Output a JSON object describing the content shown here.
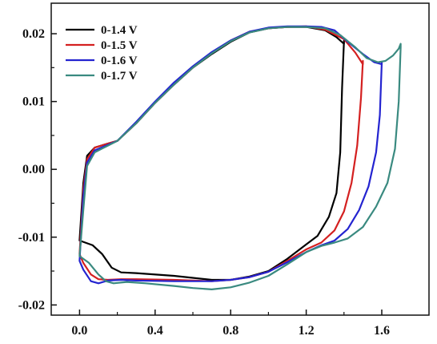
{
  "chart_data": {
    "type": "line",
    "title": "",
    "xlabel": "",
    "ylabel": "",
    "xlim": [
      -0.15,
      1.85
    ],
    "ylim": [
      -0.0215,
      0.0245
    ],
    "x_ticks": [
      0.0,
      0.4,
      0.8,
      1.2,
      1.6
    ],
    "x_tick_labels": [
      "0.0",
      "0.4",
      "0.8",
      "1.2",
      "1.6"
    ],
    "y_ticks": [
      0.02,
      0.01,
      0.0,
      -0.01,
      -0.02
    ],
    "y_tick_labels": [
      "0.02",
      "0.01",
      "0.00",
      "-0.01",
      "-0.02"
    ],
    "grid": false,
    "legend_position": "top-left",
    "series": [
      {
        "name": "0-1.4 V",
        "color": "#000000",
        "points": [
          [
            0.0,
            -0.0105
          ],
          [
            0.02,
            -0.002
          ],
          [
            0.04,
            0.002
          ],
          [
            0.08,
            0.0032
          ],
          [
            0.15,
            0.0038
          ],
          [
            0.2,
            0.0042
          ],
          [
            0.3,
            0.0068
          ],
          [
            0.4,
            0.0098
          ],
          [
            0.5,
            0.0125
          ],
          [
            0.6,
            0.015
          ],
          [
            0.7,
            0.017
          ],
          [
            0.8,
            0.0188
          ],
          [
            0.9,
            0.0202
          ],
          [
            1.0,
            0.0208
          ],
          [
            1.1,
            0.021
          ],
          [
            1.2,
            0.021
          ],
          [
            1.3,
            0.0205
          ],
          [
            1.36,
            0.0195
          ],
          [
            1.4,
            0.0185
          ],
          [
            1.4,
            0.019
          ],
          [
            1.39,
            0.012
          ],
          [
            1.38,
            0.0025
          ],
          [
            1.36,
            -0.0035
          ],
          [
            1.32,
            -0.007
          ],
          [
            1.26,
            -0.0098
          ],
          [
            1.18,
            -0.0115
          ],
          [
            1.1,
            -0.0132
          ],
          [
            1.0,
            -0.015
          ],
          [
            0.9,
            -0.0158
          ],
          [
            0.8,
            -0.0163
          ],
          [
            0.7,
            -0.0163
          ],
          [
            0.5,
            -0.0157
          ],
          [
            0.3,
            -0.0153
          ],
          [
            0.22,
            -0.0152
          ],
          [
            0.17,
            -0.0145
          ],
          [
            0.12,
            -0.0125
          ],
          [
            0.07,
            -0.0112
          ],
          [
            0.0,
            -0.0105
          ]
        ]
      },
      {
        "name": "0-1.5 V",
        "color": "#d42020",
        "points": [
          [
            0.0,
            -0.0125
          ],
          [
            0.02,
            -0.003
          ],
          [
            0.04,
            0.0015
          ],
          [
            0.08,
            0.0032
          ],
          [
            0.15,
            0.0038
          ],
          [
            0.2,
            0.0042
          ],
          [
            0.3,
            0.0068
          ],
          [
            0.4,
            0.0098
          ],
          [
            0.5,
            0.0125
          ],
          [
            0.6,
            0.015
          ],
          [
            0.7,
            0.0172
          ],
          [
            0.8,
            0.019
          ],
          [
            0.9,
            0.0203
          ],
          [
            1.0,
            0.0208
          ],
          [
            1.1,
            0.021
          ],
          [
            1.2,
            0.0211
          ],
          [
            1.3,
            0.0206
          ],
          [
            1.4,
            0.0192
          ],
          [
            1.46,
            0.0172
          ],
          [
            1.5,
            0.0155
          ],
          [
            1.5,
            0.016
          ],
          [
            1.49,
            0.0105
          ],
          [
            1.47,
            0.0035
          ],
          [
            1.44,
            -0.002
          ],
          [
            1.4,
            -0.0062
          ],
          [
            1.35,
            -0.009
          ],
          [
            1.28,
            -0.0108
          ],
          [
            1.2,
            -0.0118
          ],
          [
            1.1,
            -0.0135
          ],
          [
            1.0,
            -0.0151
          ],
          [
            0.9,
            -0.0159
          ],
          [
            0.8,
            -0.0163
          ],
          [
            0.7,
            -0.0165
          ],
          [
            0.5,
            -0.0163
          ],
          [
            0.3,
            -0.0162
          ],
          [
            0.22,
            -0.0162
          ],
          [
            0.15,
            -0.0163
          ],
          [
            0.1,
            -0.0162
          ],
          [
            0.06,
            -0.0155
          ],
          [
            0.02,
            -0.0138
          ],
          [
            0.0,
            -0.0125
          ]
        ]
      },
      {
        "name": "0-1.6 V",
        "color": "#2424d0",
        "points": [
          [
            0.0,
            -0.0135
          ],
          [
            0.02,
            -0.004
          ],
          [
            0.04,
            0.001
          ],
          [
            0.08,
            0.0028
          ],
          [
            0.15,
            0.0036
          ],
          [
            0.2,
            0.0042
          ],
          [
            0.3,
            0.007
          ],
          [
            0.4,
            0.01
          ],
          [
            0.5,
            0.0128
          ],
          [
            0.6,
            0.0152
          ],
          [
            0.7,
            0.0173
          ],
          [
            0.8,
            0.019
          ],
          [
            0.9,
            0.0203
          ],
          [
            1.0,
            0.0209
          ],
          [
            1.1,
            0.0211
          ],
          [
            1.2,
            0.0211
          ],
          [
            1.28,
            0.021
          ],
          [
            1.35,
            0.0205
          ],
          [
            1.42,
            0.0188
          ],
          [
            1.5,
            0.017
          ],
          [
            1.56,
            0.0158
          ],
          [
            1.6,
            0.0155
          ],
          [
            1.6,
            0.0158
          ],
          [
            1.59,
            0.008
          ],
          [
            1.57,
            0.0025
          ],
          [
            1.53,
            -0.0025
          ],
          [
            1.48,
            -0.006
          ],
          [
            1.42,
            -0.0088
          ],
          [
            1.35,
            -0.0105
          ],
          [
            1.28,
            -0.0112
          ],
          [
            1.2,
            -0.0122
          ],
          [
            1.1,
            -0.0137
          ],
          [
            1.0,
            -0.0151
          ],
          [
            0.9,
            -0.0159
          ],
          [
            0.8,
            -0.0163
          ],
          [
            0.7,
            -0.0165
          ],
          [
            0.5,
            -0.0165
          ],
          [
            0.3,
            -0.0164
          ],
          [
            0.22,
            -0.0163
          ],
          [
            0.15,
            -0.0164
          ],
          [
            0.1,
            -0.0168
          ],
          [
            0.06,
            -0.0165
          ],
          [
            0.02,
            -0.0148
          ],
          [
            0.0,
            -0.0135
          ]
        ]
      },
      {
        "name": "0-1.7 V",
        "color": "#3a8a80",
        "points": [
          [
            0.0,
            -0.0128
          ],
          [
            0.02,
            -0.006
          ],
          [
            0.04,
            0.0005
          ],
          [
            0.08,
            0.0025
          ],
          [
            0.15,
            0.0035
          ],
          [
            0.2,
            0.0042
          ],
          [
            0.3,
            0.0068
          ],
          [
            0.4,
            0.0098
          ],
          [
            0.5,
            0.0125
          ],
          [
            0.6,
            0.015
          ],
          [
            0.7,
            0.0171
          ],
          [
            0.8,
            0.0189
          ],
          [
            0.9,
            0.0202
          ],
          [
            1.0,
            0.0208
          ],
          [
            1.1,
            0.021
          ],
          [
            1.2,
            0.021
          ],
          [
            1.3,
            0.0208
          ],
          [
            1.38,
            0.0198
          ],
          [
            1.46,
            0.018
          ],
          [
            1.52,
            0.0164
          ],
          [
            1.58,
            0.0158
          ],
          [
            1.62,
            0.016
          ],
          [
            1.66,
            0.0168
          ],
          [
            1.69,
            0.0178
          ],
          [
            1.7,
            0.0185
          ],
          [
            1.7,
            0.018
          ],
          [
            1.69,
            0.01
          ],
          [
            1.67,
            0.003
          ],
          [
            1.63,
            -0.002
          ],
          [
            1.57,
            -0.0055
          ],
          [
            1.5,
            -0.0085
          ],
          [
            1.42,
            -0.0102
          ],
          [
            1.35,
            -0.0108
          ],
          [
            1.28,
            -0.0113
          ],
          [
            1.2,
            -0.0122
          ],
          [
            1.1,
            -0.014
          ],
          [
            1.0,
            -0.0157
          ],
          [
            0.9,
            -0.0167
          ],
          [
            0.8,
            -0.0174
          ],
          [
            0.7,
            -0.0177
          ],
          [
            0.6,
            -0.0175
          ],
          [
            0.5,
            -0.0172
          ],
          [
            0.35,
            -0.0168
          ],
          [
            0.25,
            -0.0166
          ],
          [
            0.18,
            -0.0168
          ],
          [
            0.14,
            -0.0165
          ],
          [
            0.1,
            -0.0155
          ],
          [
            0.05,
            -0.0138
          ],
          [
            0.0,
            -0.0128
          ]
        ]
      }
    ]
  }
}
